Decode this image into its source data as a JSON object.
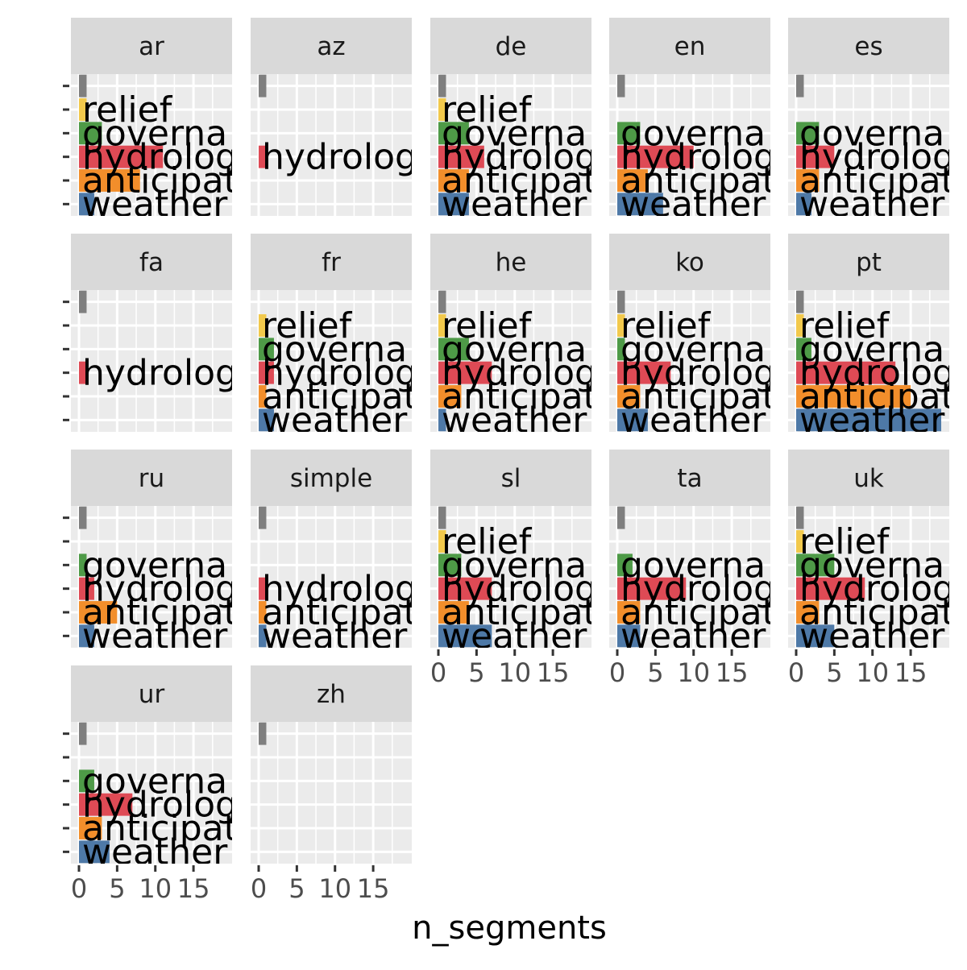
{
  "chart_data": {
    "type": "bar",
    "orientation": "horizontal",
    "facet_by": "language",
    "xlabel": "n_segments",
    "ylabel": "",
    "xlim": [
      0,
      19
    ],
    "x_ticks": [
      0,
      5,
      10,
      15
    ],
    "x_tick_labels": [
      "0",
      "5",
      "10",
      "15"
    ],
    "grid": true,
    "legend": "none",
    "categories": [
      "",
      "relief",
      "governance",
      "hydrology",
      "anticipation",
      "weather"
    ],
    "category_labels": [
      "",
      "relief",
      "governa",
      "hydrolog",
      "anticipat",
      "weather"
    ],
    "category_colors": [
      "#7f7f7f",
      "#f2c94c",
      "#4e9a47",
      "#de4a55",
      "#f28e2b",
      "#4e79a7"
    ],
    "panels": [
      {
        "name": "ar",
        "values": [
          1,
          1,
          3,
          11,
          8,
          2
        ]
      },
      {
        "name": "az",
        "values": [
          1,
          0,
          0,
          1,
          0,
          0
        ]
      },
      {
        "name": "de",
        "values": [
          1,
          1,
          4,
          6,
          4,
          4
        ]
      },
      {
        "name": "en",
        "values": [
          1,
          0,
          3,
          10,
          4,
          6
        ]
      },
      {
        "name": "es",
        "values": [
          1,
          0,
          3,
          5,
          3,
          2
        ]
      },
      {
        "name": "fa",
        "values": [
          1,
          0,
          0,
          1,
          0,
          0
        ]
      },
      {
        "name": "fr",
        "values": [
          0,
          1,
          2,
          2,
          1,
          2
        ]
      },
      {
        "name": "he",
        "values": [
          1,
          1,
          4,
          7,
          3,
          1
        ]
      },
      {
        "name": "ko",
        "values": [
          1,
          1,
          1,
          7,
          3,
          4
        ]
      },
      {
        "name": "pt",
        "values": [
          1,
          1,
          2,
          13,
          15,
          19
        ]
      },
      {
        "name": "ru",
        "values": [
          1,
          0,
          1,
          2,
          5,
          2
        ]
      },
      {
        "name": "simple",
        "values": [
          1,
          0,
          0,
          1,
          1,
          1
        ]
      },
      {
        "name": "sl",
        "values": [
          1,
          1,
          3,
          7,
          4,
          7
        ]
      },
      {
        "name": "ta",
        "values": [
          1,
          0,
          2,
          9,
          3,
          3
        ]
      },
      {
        "name": "uk",
        "values": [
          1,
          1,
          5,
          9,
          3,
          5
        ]
      },
      {
        "name": "ur",
        "values": [
          1,
          0,
          2,
          7,
          3,
          4
        ]
      },
      {
        "name": "zh",
        "values": [
          1,
          0,
          0,
          0,
          0,
          0
        ]
      }
    ]
  }
}
